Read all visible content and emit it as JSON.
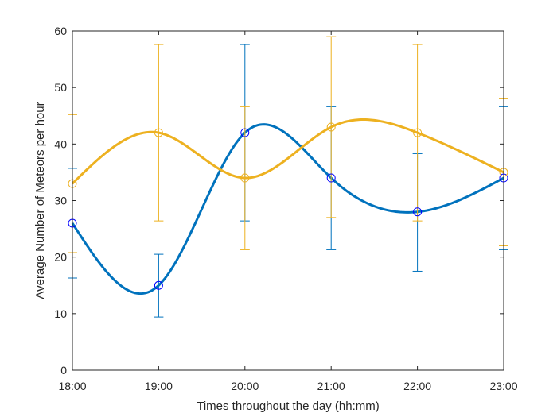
{
  "chart_data": {
    "type": "line",
    "title": "",
    "xlabel": "Times throughout the day (hh:mm)",
    "ylabel": "Average Number of Meteors per hour",
    "categories": [
      "18:00",
      "19:00",
      "20:00",
      "21:00",
      "22:00",
      "23:00"
    ],
    "ylim": [
      0,
      60
    ],
    "yticks": [
      "0",
      "10",
      "20",
      "30",
      "40",
      "50",
      "60"
    ],
    "grid": false,
    "legend": "none",
    "series": [
      {
        "color": "#0072BD",
        "marker_color": "#0000FF",
        "values": [
          26,
          15,
          42,
          34,
          28,
          34
        ],
        "err_low": [
          16.3,
          9.4,
          26.4,
          21.3,
          17.5,
          21.3
        ],
        "err_high": [
          35.7,
          20.5,
          57.6,
          46.6,
          38.3,
          46.6
        ]
      },
      {
        "color": "#EDB120",
        "marker_color": "#EDB120",
        "values": [
          33,
          42,
          34,
          43,
          42,
          35
        ],
        "err_low": [
          20.8,
          26.4,
          21.3,
          27.0,
          26.4,
          22.0
        ],
        "err_high": [
          45.2,
          57.6,
          46.6,
          59.0,
          57.6,
          48.0
        ]
      }
    ]
  }
}
